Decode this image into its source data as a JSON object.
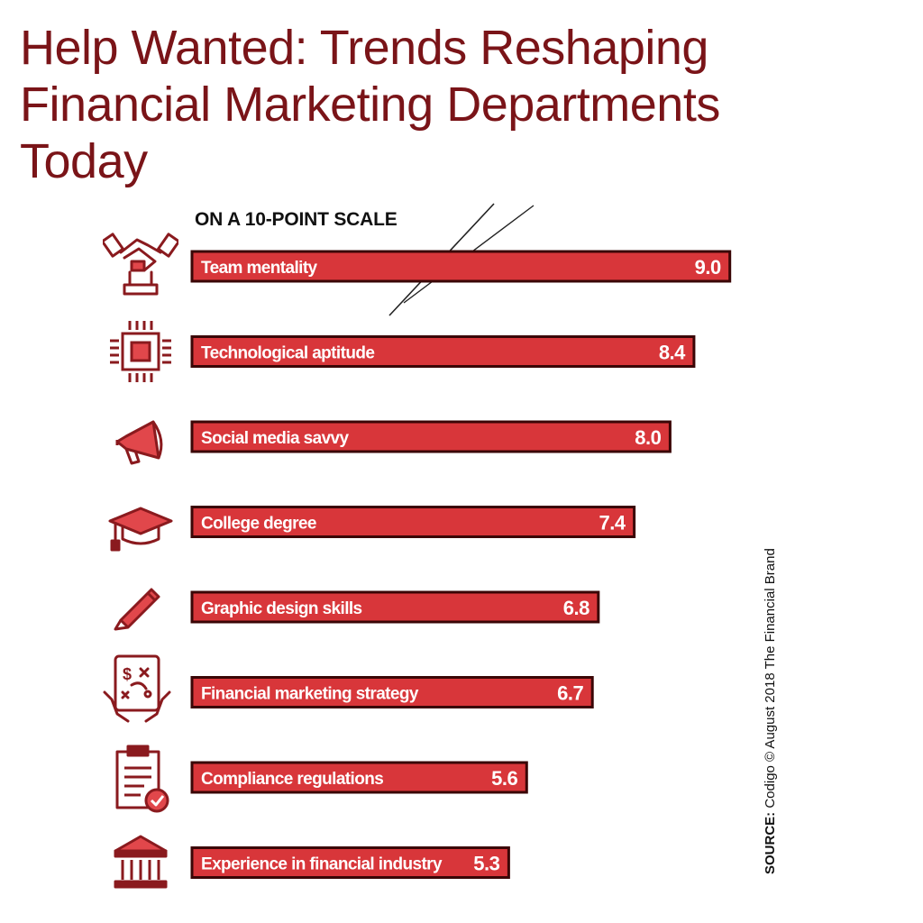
{
  "title": {
    "line1": "Help Wanted: Trends Reshaping",
    "line2": "Financial Marketing Departments",
    "line3": "Today"
  },
  "subtitle": "ON A 10-POINT SCALE",
  "source": {
    "label": "SOURCE:",
    "text": "Codigo © August 2018 The Financial Brand"
  },
  "colors": {
    "title": "#7a1418",
    "bar": "#d8363a",
    "bar_border": "#3a0606",
    "icon": "#8a1a1e"
  },
  "chart_data": {
    "type": "bar",
    "orientation": "horizontal",
    "title": "Help Wanted: Trends Reshaping Financial Marketing Departments Today",
    "scale_label": "ON A 10-POINT SCALE",
    "categories": [
      "Team mentality",
      "Technological aptitude",
      "Social media savvy",
      "College degree",
      "Graphic design skills",
      "Financial marketing strategy",
      "Compliance regulations",
      "Experience in financial industry"
    ],
    "values": [
      9.0,
      8.4,
      8.0,
      7.4,
      6.8,
      6.7,
      5.6,
      5.3
    ],
    "value_labels": [
      "9.0",
      "8.4",
      "8.0",
      "7.4",
      "6.8",
      "6.7",
      "5.6",
      "5.3"
    ],
    "icons": [
      "handshake-icon",
      "chip-icon",
      "megaphone-icon",
      "graduation-cap-icon",
      "pencil-icon",
      "tablet-strategy-icon",
      "clipboard-check-icon",
      "bank-icon"
    ],
    "xlim": [
      0,
      10
    ],
    "grid": false,
    "legend": "none"
  }
}
